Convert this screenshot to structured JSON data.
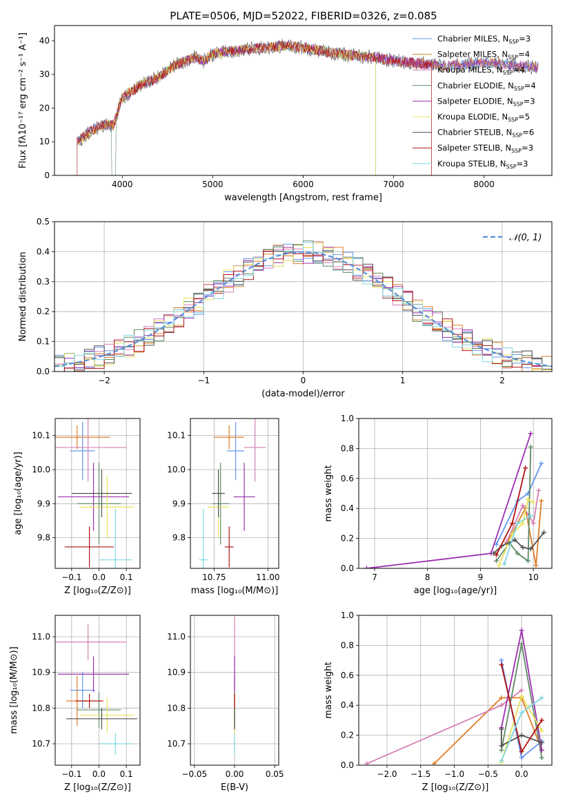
{
  "title": "PLATE=0506, MJD=52022, FIBERID=0326, z=0.085",
  "colors": {
    "c1": "#6495ed",
    "c2": "#e07b24",
    "c3": "#d47fb3",
    "c4": "#5e8a64",
    "c5": "#9b2fae",
    "c6": "#e8e35a",
    "c7": "#505050",
    "c8": "#b01010",
    "c9": "#7fd6e0",
    "grid": "#b0b0b0",
    "gauss": "#5a8fd8"
  },
  "chart_data": [
    {
      "id": "spectrum",
      "type": "line",
      "xlabel": "wavelength [Angstrom, rest frame]",
      "ylabel": "Flux [fλ10⁻¹⁷ erg cm⁻² s⁻¹ A⁻¹]",
      "xlim": [
        3250,
        8750
      ],
      "ylim": [
        0,
        44.5
      ],
      "xticks": [
        4000,
        5000,
        6000,
        7000,
        8000
      ],
      "yticks": [
        0,
        10,
        20,
        30,
        40
      ],
      "grid": false,
      "legend": "top-right",
      "series": [
        {
          "name": "Chabrier MILES",
          "nssp": "3"
        },
        {
          "name": "Salpeter MILES",
          "nssp": "4"
        },
        {
          "name": "Kroupa MILES",
          "nssp": "4"
        },
        {
          "name": "Chabrier ELODIE",
          "nssp": "4"
        },
        {
          "name": "Salpeter ELODIE",
          "nssp": "3"
        },
        {
          "name": "Kroupa ELODIE",
          "nssp": "5"
        },
        {
          "name": "Chabrier STELIB",
          "nssp": "6"
        },
        {
          "name": "Salpeter STELIB",
          "nssp": "3"
        },
        {
          "name": "Kroupa STELIB",
          "nssp": "3"
        }
      ],
      "continuum": {
        "x": [
          3500,
          3600,
          3700,
          3800,
          3900,
          4000,
          4100,
          4200,
          4300,
          4400,
          4500,
          4600,
          4700,
          4800,
          4900,
          5000,
          5200,
          5400,
          5600,
          5800,
          6000,
          6200,
          6400,
          6600,
          6800,
          7000,
          7200,
          7400,
          7600,
          7800,
          8000,
          8200,
          8400,
          8600
        ],
        "y": [
          10,
          12,
          14,
          15,
          15,
          23,
          25,
          27,
          28,
          29,
          31,
          33,
          34,
          35,
          34,
          36,
          37,
          37.5,
          38,
          38.5,
          38,
          37,
          36,
          35.5,
          35,
          34,
          33.5,
          33,
          32.5,
          33,
          33.5,
          33,
          32.5,
          32
        ]
      }
    },
    {
      "id": "residuals",
      "type": "bar",
      "xlabel": "(data-model)/error",
      "ylabel": "Normed distribution",
      "xlim": [
        -2.5,
        2.5
      ],
      "ylim": [
        0,
        0.5
      ],
      "xticks": [
        -2,
        -1,
        0,
        1,
        2
      ],
      "xticklabels": [
        "−2",
        "−1",
        "0",
        "1",
        "2"
      ],
      "yticks": [
        0,
        0.1,
        0.2,
        0.3,
        0.4,
        0.5
      ],
      "yticklabels": [
        "0.0",
        "0.1",
        "0.2",
        "0.3",
        "0.4",
        "0.5"
      ],
      "grid": true,
      "legend": "top-right",
      "gauss_label": "𝒩(0, 1)",
      "bin_width": 0.1
    },
    {
      "id": "age-vs-Z",
      "type": "scatter",
      "xlabel": "Z [log₁₀(Z/Z⊙)]",
      "ylabel": "age  [log₁₀(age/yr)]",
      "xlim": [
        -0.16,
        0.15
      ],
      "ylim": [
        9.71,
        10.15
      ],
      "xticks": [
        -0.1,
        0.0,
        0.1
      ],
      "xticklabels": [
        "−0.1",
        "0.0",
        "0.1"
      ],
      "yticks": [
        9.8,
        9.9,
        10.0,
        10.1
      ],
      "yticklabels": [
        "9.8",
        "9.9",
        "10.0",
        "10.1"
      ],
      "grid": true,
      "points": [
        {
          "x": -0.06,
          "y": 10.055,
          "xerr": 0.045,
          "yerr": 0.085
        },
        {
          "x": -0.08,
          "y": 10.095,
          "xerr": 0.12,
          "yerr": 0.035
        },
        {
          "x": -0.04,
          "y": 10.065,
          "xerr": 0.14,
          "yerr": 0.1
        },
        {
          "x": 0.0,
          "y": 9.9,
          "xerr": 0.08,
          "yerr": 0.12
        },
        {
          "x": -0.02,
          "y": 9.92,
          "xerr": 0.13,
          "yerr": 0.1
        },
        {
          "x": 0.03,
          "y": 9.89,
          "xerr": 0.1,
          "yerr": 0.09
        },
        {
          "x": 0.01,
          "y": 9.93,
          "xerr": 0.11,
          "yerr": 0.07
        },
        {
          "x": -0.035,
          "y": 9.773,
          "xerr": 0.09,
          "yerr": 0.06
        },
        {
          "x": 0.06,
          "y": 9.735,
          "xerr": 0.06,
          "yerr": 0.15
        }
      ]
    },
    {
      "id": "age-vs-mass",
      "type": "scatter",
      "xlabel": "mass [log₁₀(M/M⊙)]",
      "xlim": [
        10.64,
        11.05
      ],
      "ylim": [
        9.71,
        10.15
      ],
      "xticks": [
        10.75,
        11.0
      ],
      "xticklabels": [
        "10.75",
        "11.00"
      ],
      "yticks": [
        9.8,
        9.9,
        10.0,
        10.1
      ],
      "yticklabels": [
        "9.8",
        "9.9",
        "10.0",
        "10.1"
      ],
      "grid": true,
      "points": [
        {
          "x": 10.85,
          "y": 10.055,
          "xerr": 0.04,
          "yerr": 0.085
        },
        {
          "x": 10.82,
          "y": 10.095,
          "xerr": 0.07,
          "yerr": 0.035
        },
        {
          "x": 10.94,
          "y": 10.065,
          "xerr": 0.05,
          "yerr": 0.1
        },
        {
          "x": 10.78,
          "y": 9.9,
          "xerr": 0.04,
          "yerr": 0.12
        },
        {
          "x": 10.89,
          "y": 9.92,
          "xerr": 0.05,
          "yerr": 0.1
        },
        {
          "x": 10.77,
          "y": 9.89,
          "xerr": 0.05,
          "yerr": 0.09
        },
        {
          "x": 10.77,
          "y": 9.93,
          "xerr": 0.03,
          "yerr": 0.07
        },
        {
          "x": 10.82,
          "y": 9.773,
          "xerr": 0.02,
          "yerr": 0.06
        },
        {
          "x": 10.7,
          "y": 9.735,
          "xerr": 0.02,
          "yerr": 0.15
        }
      ]
    },
    {
      "id": "weight-vs-age",
      "type": "line",
      "xlabel": "age  [log₁₀(age/yr)]",
      "ylabel": "mass weight",
      "xlim": [
        6.7,
        10.35
      ],
      "ylim": [
        0,
        1.0
      ],
      "xticks": [
        7,
        8,
        9,
        10
      ],
      "xticklabels": [
        "7",
        "8",
        "9",
        "10"
      ],
      "yticks": [
        0,
        0.2,
        0.4,
        0.6,
        0.8,
        1.0
      ],
      "yticklabels": [
        "0.0",
        "0.2",
        "0.4",
        "0.6",
        "0.8",
        "1.0"
      ],
      "grid": true,
      "series": [
        {
          "x": [
            9.3,
            9.7,
            9.9,
            10.15
          ],
          "y": [
            0.16,
            0.45,
            0.5,
            0.7
          ]
        },
        {
          "x": [
            9.5,
            9.85,
            10.05,
            10.15
          ],
          "y": [
            0.17,
            0.4,
            0.02,
            0.45
          ]
        },
        {
          "x": [
            9.5,
            9.8,
            10.0,
            10.1
          ],
          "y": [
            0.18,
            0.42,
            0.3,
            0.52
          ]
        },
        {
          "x": [
            9.3,
            9.55,
            9.7,
            9.9,
            9.95
          ],
          "y": [
            0.05,
            0.17,
            0.1,
            0.05,
            0.81
          ]
        },
        {
          "x": [
            6.85,
            9.2,
            9.95
          ],
          "y": [
            0.0,
            0.1,
            0.9
          ]
        },
        {
          "x": [
            9.35,
            9.6,
            9.8,
            9.9,
            10.0
          ],
          "y": [
            0.02,
            0.23,
            0.3,
            0.46,
            0.44
          ]
        },
        {
          "x": [
            9.25,
            9.4,
            9.65,
            9.8,
            9.95,
            10.2
          ],
          "y": [
            0.1,
            0.15,
            0.19,
            0.14,
            0.13,
            0.24
          ]
        },
        {
          "x": [
            9.3,
            9.6,
            9.85
          ],
          "y": [
            0.09,
            0.3,
            0.67
          ]
        },
        {
          "x": [
            9.45,
            9.7,
            9.95
          ],
          "y": [
            0.03,
            0.3,
            0.35
          ]
        }
      ]
    },
    {
      "id": "mass-vs-Z",
      "type": "scatter",
      "xlabel": "Z [log₁₀(Z/Z⊙)]",
      "ylabel": "mass [log₁₀(M/M⊙)]",
      "xlim": [
        -0.16,
        0.15
      ],
      "ylim": [
        10.64,
        11.06
      ],
      "xticks": [
        -0.1,
        0.0,
        0.1
      ],
      "xticklabels": [
        "−0.1",
        "0.0",
        "0.1"
      ],
      "yticks": [
        10.7,
        10.8,
        10.9,
        11.0
      ],
      "yticklabels": [
        "10.7",
        "10.8",
        "10.9",
        "11.0"
      ],
      "grid": true,
      "points": [
        {
          "x": -0.06,
          "y": 10.85,
          "xerr": 0.045,
          "yerr": 0.05
        },
        {
          "x": -0.08,
          "y": 10.82,
          "xerr": 0.04,
          "yerr": 0.07
        },
        {
          "x": -0.04,
          "y": 10.985,
          "xerr": 0.14,
          "yerr": 0.05
        },
        {
          "x": 0.0,
          "y": 10.795,
          "xerr": 0.08,
          "yerr": 0.05
        },
        {
          "x": -0.02,
          "y": 10.895,
          "xerr": 0.13,
          "yerr": 0.05
        },
        {
          "x": 0.03,
          "y": 10.78,
          "xerr": 0.1,
          "yerr": 0.05
        },
        {
          "x": 0.01,
          "y": 10.77,
          "xerr": 0.13,
          "yerr": 0.03
        },
        {
          "x": -0.035,
          "y": 10.82,
          "xerr": 0.05,
          "yerr": 0.02
        },
        {
          "x": 0.06,
          "y": 10.7,
          "xerr": 0.06,
          "yerr": 0.03
        }
      ]
    },
    {
      "id": "mass-vs-ebv",
      "type": "scatter",
      "xlabel": "E(B-V)",
      "xlim": [
        -0.055,
        0.055
      ],
      "ylim": [
        10.64,
        11.06
      ],
      "xticks": [
        -0.05,
        0.0,
        0.05
      ],
      "xticklabels": [
        "−0.05",
        "0.00",
        "0.05"
      ],
      "yticks": [
        10.7,
        10.8,
        10.9,
        11.0
      ],
      "yticklabels": [
        "10.7",
        "10.8",
        "10.9",
        "11.0"
      ],
      "grid": true,
      "points": [
        {
          "x": 0,
          "y": 10.85,
          "yerr": 0.05
        },
        {
          "x": 0,
          "y": 10.82,
          "yerr": 0.07
        },
        {
          "x": 0,
          "y": 10.985,
          "yerr": 0.07
        },
        {
          "x": 0,
          "y": 10.795,
          "yerr": 0.05
        },
        {
          "x": 0,
          "y": 10.895,
          "yerr": 0.05
        },
        {
          "x": 0,
          "y": 10.78,
          "yerr": 0.05
        },
        {
          "x": 0,
          "y": 10.77,
          "yerr": 0.03
        },
        {
          "x": 0,
          "y": 10.82,
          "yerr": 0.02
        },
        {
          "x": 0,
          "y": 10.7,
          "yerr": 0.03
        }
      ]
    },
    {
      "id": "weight-vs-Z",
      "type": "line",
      "xlabel": "Z [log₁₀(Z/Z⊙)]",
      "ylabel": "mass weight",
      "xlim": [
        -2.42,
        0.45
      ],
      "ylim": [
        0,
        1.0
      ],
      "xticks": [
        -2.0,
        -1.5,
        -1.0,
        -0.5,
        0.0
      ],
      "xticklabels": [
        "−2.0",
        "−1.5",
        "−1.0",
        "−0.5",
        "0.0"
      ],
      "yticks": [
        0,
        0.2,
        0.4,
        0.6,
        0.8,
        1.0
      ],
      "yticklabels": [
        "0.0",
        "0.2",
        "0.4",
        "0.6",
        "0.8",
        "1.0"
      ],
      "grid": true,
      "series": [
        {
          "x": [
            -0.3,
            0.0,
            0.3
          ],
          "y": [
            0.7,
            0.05,
            0.16
          ]
        },
        {
          "x": [
            -1.3,
            -0.3,
            0.0,
            0.3
          ],
          "y": [
            0.01,
            0.45,
            0.45,
            0.1
          ]
        },
        {
          "x": [
            -2.3,
            -0.3,
            0.0
          ],
          "y": [
            0.01,
            0.4,
            0.5
          ]
        },
        {
          "x": [
            -0.3,
            0.0,
            0.3
          ],
          "y": [
            0.1,
            0.81,
            0.05
          ]
        },
        {
          "x": [
            -0.3,
            0.0,
            0.3
          ],
          "y": [
            0.25,
            0.9,
            0.1
          ]
        },
        {
          "x": [
            -0.3,
            0.0,
            0.3
          ],
          "y": [
            0.02,
            0.46,
            0.23
          ]
        },
        {
          "x": [
            -0.3,
            -0.3,
            0.0,
            0.3
          ],
          "y": [
            0.24,
            0.13,
            0.2,
            0.15
          ]
        },
        {
          "x": [
            -0.3,
            0.0,
            0.3
          ],
          "y": [
            0.67,
            0.09,
            0.3
          ]
        },
        {
          "x": [
            -0.3,
            0.0,
            0.3
          ],
          "y": [
            0.03,
            0.35,
            0.45
          ]
        }
      ]
    }
  ]
}
